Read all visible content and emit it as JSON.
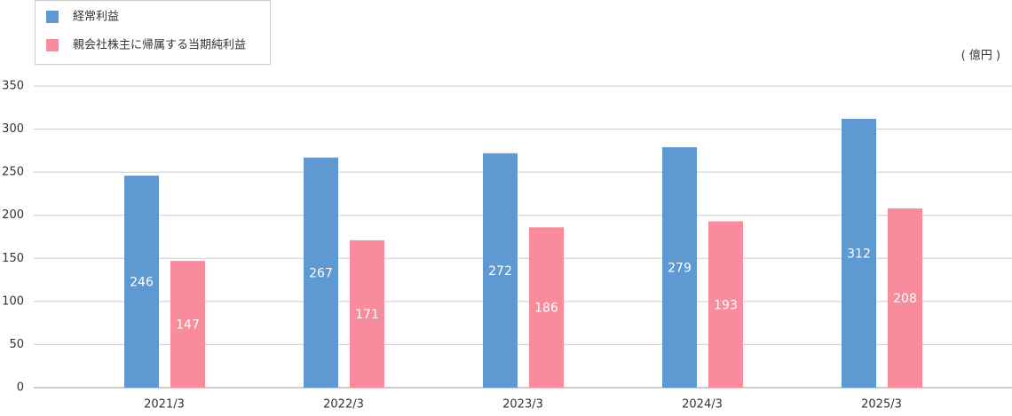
{
  "chart_data": {
    "type": "bar",
    "unit": "( 億円 )",
    "categories": [
      "2021/3",
      "2022/3",
      "2023/3",
      "2024/3",
      "2025/3"
    ],
    "series": [
      {
        "name": "経常利益",
        "color": "#5f99d2",
        "values": [
          246,
          267,
          272,
          279,
          312
        ]
      },
      {
        "name": "親会社株主に帰属する当期純利益",
        "color": "#f98c9c",
        "values": [
          147,
          171,
          186,
          193,
          208
        ]
      }
    ],
    "ylim": [
      0,
      350
    ],
    "yticks": [
      0,
      50,
      100,
      150,
      200,
      250,
      300,
      350
    ],
    "grid": true,
    "legend": "top-left"
  }
}
